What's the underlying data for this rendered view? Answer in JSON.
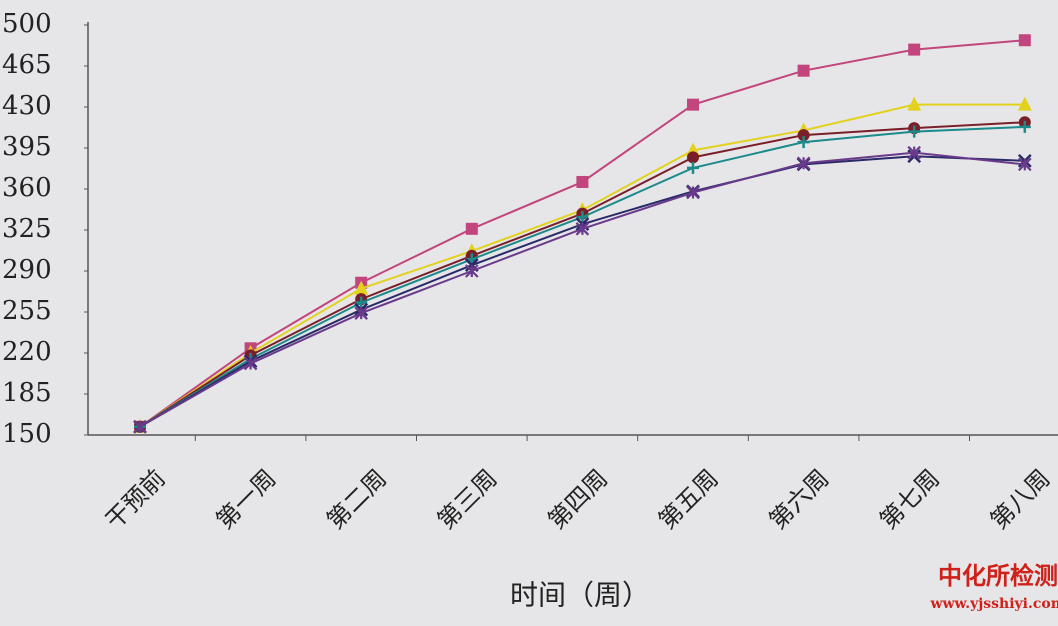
{
  "chart_data": {
    "type": "line",
    "x_label": "时间（周）",
    "categories": [
      "干预前",
      "第一周",
      "第二周",
      "第三周",
      "第四周",
      "第五周",
      "第六周",
      "第七周",
      "第八周"
    ],
    "ylim": [
      150,
      500
    ],
    "yticks": [
      150,
      185,
      220,
      255,
      290,
      325,
      360,
      395,
      430,
      465,
      500
    ],
    "grid": false,
    "series": [
      {
        "color": "#c2457d",
        "marker": "square",
        "values": [
          157,
          224,
          280,
          326,
          366,
          432,
          461,
          479,
          487
        ]
      },
      {
        "color": "#e2d21e",
        "marker": "triangle",
        "values": [
          157,
          220,
          275,
          307,
          342,
          393,
          410,
          432,
          432
        ]
      },
      {
        "color": "#7a1f2a",
        "marker": "circle",
        "values": [
          157,
          218,
          266,
          303,
          339,
          387,
          406,
          412,
          417
        ]
      },
      {
        "color": "#1c8a8a",
        "marker": "plus",
        "values": [
          157,
          215,
          263,
          300,
          336,
          378,
          400,
          409,
          413
        ]
      },
      {
        "color": "#2a2a6a",
        "marker": "cross",
        "values": [
          157,
          213,
          257,
          295,
          330,
          358,
          381,
          388,
          384
        ]
      },
      {
        "color": "#6a3a8a",
        "marker": "star",
        "values": [
          157,
          211,
          254,
          290,
          326,
          357,
          382,
          391,
          381
        ]
      }
    ],
    "watermark": {
      "name": "中化所检测",
      "url": "www.yjsshiyi.com"
    }
  }
}
